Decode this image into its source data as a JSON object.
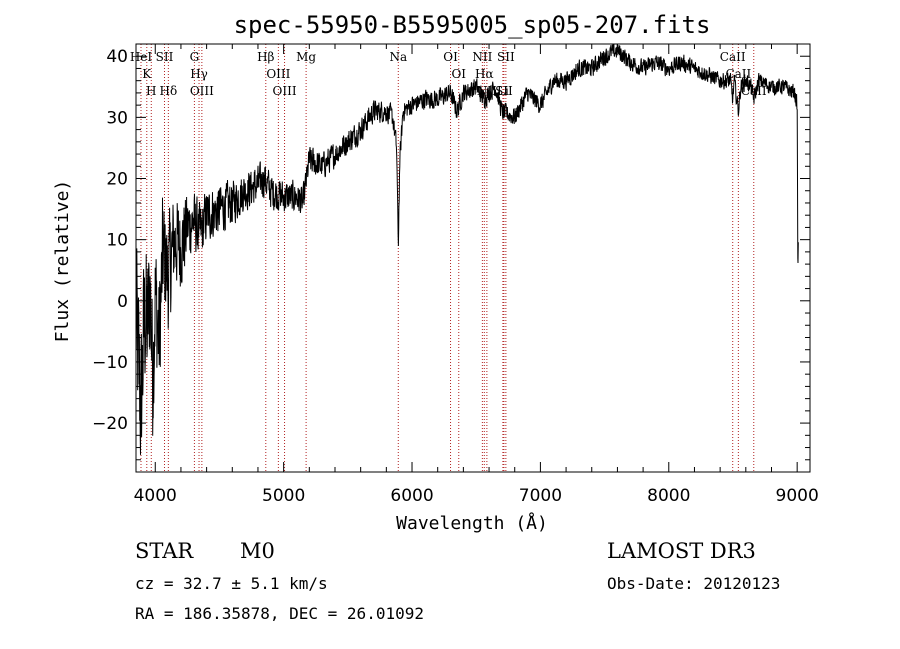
{
  "chart_data": {
    "type": "line",
    "title": "spec-55950-B5595005_sp05-207.fits",
    "xlabel": "Wavelength (Å)",
    "ylabel": "Flux (relative)",
    "xlim": [
      3850,
      9100
    ],
    "ylim": [
      -28,
      42
    ],
    "xticks": [
      4000,
      5000,
      6000,
      7000,
      8000,
      9000
    ],
    "yticks": [
      -20,
      -10,
      0,
      10,
      20,
      30,
      40
    ],
    "grid": false,
    "line_color": "#000000",
    "marker_color": "#b22222",
    "spectrum_anchors": [
      [
        3850,
        -3
      ],
      [
        3870,
        -10
      ],
      [
        3890,
        -18
      ],
      [
        3905,
        -8
      ],
      [
        3920,
        -2
      ],
      [
        3940,
        -5
      ],
      [
        3960,
        2
      ],
      [
        3980,
        -12
      ],
      [
        4000,
        1
      ],
      [
        4030,
        -7
      ],
      [
        4060,
        8
      ],
      [
        4100,
        4
      ],
      [
        4150,
        10
      ],
      [
        4200,
        9
      ],
      [
        4250,
        12
      ],
      [
        4300,
        13
      ],
      [
        4350,
        11
      ],
      [
        4400,
        14
      ],
      [
        4500,
        15
      ],
      [
        4600,
        16
      ],
      [
        4700,
        18
      ],
      [
        4800,
        19
      ],
      [
        4850,
        20
      ],
      [
        4900,
        18
      ],
      [
        5000,
        17
      ],
      [
        5100,
        17
      ],
      [
        5150,
        16
      ],
      [
        5200,
        23
      ],
      [
        5300,
        22
      ],
      [
        5400,
        24
      ],
      [
        5500,
        26
      ],
      [
        5600,
        28
      ],
      [
        5700,
        31
      ],
      [
        5800,
        31
      ],
      [
        5850,
        30
      ],
      [
        5880,
        25
      ],
      [
        5893,
        9
      ],
      [
        5905,
        23
      ],
      [
        5930,
        31
      ],
      [
        6000,
        32
      ],
      [
        6100,
        33
      ],
      [
        6200,
        33
      ],
      [
        6300,
        34
      ],
      [
        6350,
        31
      ],
      [
        6400,
        34
      ],
      [
        6500,
        35
      ],
      [
        6560,
        33
      ],
      [
        6600,
        34
      ],
      [
        6650,
        35
      ],
      [
        6700,
        31
      ],
      [
        6800,
        30
      ],
      [
        6850,
        32
      ],
      [
        6900,
        34
      ],
      [
        7000,
        32
      ],
      [
        7100,
        36
      ],
      [
        7200,
        36
      ],
      [
        7300,
        38
      ],
      [
        7400,
        38
      ],
      [
        7500,
        40
      ],
      [
        7600,
        41
      ],
      [
        7700,
        39
      ],
      [
        7800,
        38
      ],
      [
        7900,
        39
      ],
      [
        8000,
        38
      ],
      [
        8100,
        39
      ],
      [
        8200,
        38
      ],
      [
        8300,
        37
      ],
      [
        8400,
        36
      ],
      [
        8480,
        36
      ],
      [
        8498,
        33
      ],
      [
        8510,
        36
      ],
      [
        8542,
        31
      ],
      [
        8560,
        35
      ],
      [
        8600,
        36
      ],
      [
        8640,
        35
      ],
      [
        8662,
        33
      ],
      [
        8700,
        36
      ],
      [
        8800,
        35
      ],
      [
        8900,
        35
      ],
      [
        8980,
        34
      ],
      [
        9000,
        32
      ],
      [
        9005,
        5
      ],
      [
        9010,
        10
      ]
    ],
    "noise_bands": [
      [
        3850,
        18
      ],
      [
        4000,
        14
      ],
      [
        4300,
        6
      ],
      [
        4700,
        4
      ],
      [
        5400,
        2.6
      ],
      [
        6000,
        2
      ],
      [
        9010,
        1.6
      ]
    ],
    "line_markers": [
      {
        "label": "HeI",
        "wavelength": 3889
      },
      {
        "label": "K",
        "wavelength": 3934
      },
      {
        "label": "H",
        "wavelength": 3969
      },
      {
        "label": "SII",
        "wavelength": 4072
      },
      {
        "label": "Hδ",
        "wavelength": 4102
      },
      {
        "label": "G",
        "wavelength": 4305
      },
      {
        "label": "Hγ",
        "wavelength": 4341
      },
      {
        "label": "OIII",
        "wavelength": 4363
      },
      {
        "label": "Hβ",
        "wavelength": 4861
      },
      {
        "label": "OIII",
        "wavelength": 4959
      },
      {
        "label": "OIII",
        "wavelength": 5007
      },
      {
        "label": "Mg",
        "wavelength": 5175
      },
      {
        "label": "Na",
        "wavelength": 5893
      },
      {
        "label": "OI",
        "wavelength": 6300
      },
      {
        "label": "OI",
        "wavelength": 6364
      },
      {
        "label": "NII",
        "wavelength": 6548
      },
      {
        "label": "Hα",
        "wavelength": 6563
      },
      {
        "label": "NII",
        "wavelength": 6583
      },
      {
        "label": "Li",
        "wavelength": 6708
      },
      {
        "label": "SII",
        "wavelength": 6716
      },
      {
        "label": "SII",
        "wavelength": 6731
      },
      {
        "label": "CaII",
        "wavelength": 8498
      },
      {
        "label": "CaII",
        "wavelength": 8542
      },
      {
        "label": "CaII",
        "wavelength": 8662
      }
    ]
  },
  "info": {
    "class": "STAR",
    "subclass": "M0",
    "survey": "LAMOST DR3",
    "cz": "cz = 32.7 ± 5.1 km/s",
    "obs_date": "Obs-Date: 20120123",
    "coords": "RA = 186.35878, DEC =  26.01092"
  }
}
